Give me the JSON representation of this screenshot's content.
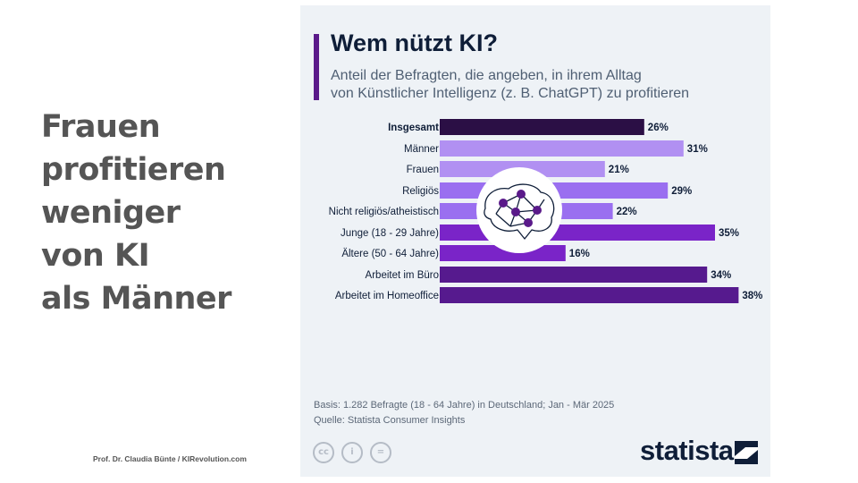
{
  "headline": {
    "lines": [
      "Frauen",
      "profitieren",
      "weniger",
      "von KI",
      "als Männer"
    ]
  },
  "credit": "Prof. Dr. Claudia Bünte / KIRevolution.com",
  "chart_data": {
    "type": "bar",
    "orientation": "horizontal",
    "title": "Wem nützt KI?",
    "subtitle_lines": [
      "Anteil der Befragten, die angeben, in ihrem Alltag",
      "von Künstlicher Intelligenz (z. B. ChatGPT) zu profitieren"
    ],
    "unit": "%",
    "xlim": [
      0,
      40
    ],
    "grid": false,
    "groups": [
      {
        "bars": [
          {
            "label": "Insgesamt",
            "value": 26,
            "bold": true,
            "color": "#2b0f45"
          }
        ]
      },
      {
        "bars": [
          {
            "label": "Männer",
            "value": 31,
            "color": "#b190f2"
          },
          {
            "label": "Frauen",
            "value": 21,
            "color": "#b190f2"
          }
        ]
      },
      {
        "bars": [
          {
            "label": "Religiös",
            "value": 29,
            "color": "#9a6ff0"
          },
          {
            "label": "Nicht religiös/atheistisch",
            "value": 22,
            "color": "#9a6ff0"
          }
        ]
      },
      {
        "bars": [
          {
            "label": "Junge (18 - 29 Jahre)",
            "value": 35,
            "color": "#7a24c8"
          },
          {
            "label": "Ältere (50 - 64 Jahre)",
            "value": 16,
            "color": "#7a24c8"
          }
        ]
      },
      {
        "bars": [
          {
            "label": "Arbeitet im Büro",
            "value": 34,
            "color": "#561a8e"
          },
          {
            "label": "Arbeitet im Homeoffice",
            "value": 38,
            "color": "#561a8e"
          }
        ]
      }
    ]
  },
  "footer": {
    "basis": "Basis: 1.282 Befragte (18 - 64 Jahre) in Deutschland; Jan - Mär 2025",
    "source": "Quelle: Statista Consumer Insights",
    "license_icons": [
      {
        "name": "cc-icon",
        "glyph": "cc"
      },
      {
        "name": "by-icon",
        "glyph": "i"
      },
      {
        "name": "nd-icon",
        "glyph": "="
      }
    ]
  },
  "brand": {
    "name": "statista",
    "colors": {
      "dark": "#0f1e38"
    }
  }
}
